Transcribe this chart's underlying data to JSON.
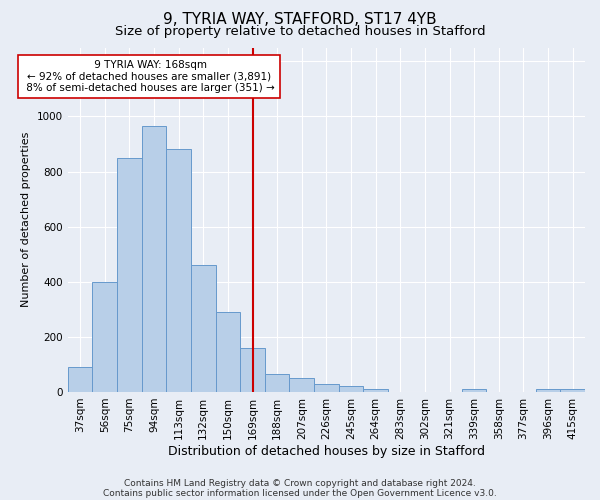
{
  "title1": "9, TYRIA WAY, STAFFORD, ST17 4YB",
  "title2": "Size of property relative to detached houses in Stafford",
  "xlabel": "Distribution of detached houses by size in Stafford",
  "ylabel": "Number of detached properties",
  "footer1": "Contains HM Land Registry data © Crown copyright and database right 2024.",
  "footer2": "Contains public sector information licensed under the Open Government Licence v3.0.",
  "bar_labels": [
    "37sqm",
    "56sqm",
    "75sqm",
    "94sqm",
    "113sqm",
    "132sqm",
    "150sqm",
    "169sqm",
    "188sqm",
    "207sqm",
    "226sqm",
    "245sqm",
    "264sqm",
    "283sqm",
    "302sqm",
    "321sqm",
    "339sqm",
    "358sqm",
    "377sqm",
    "396sqm",
    "415sqm"
  ],
  "bar_values": [
    90,
    400,
    850,
    965,
    880,
    460,
    290,
    160,
    65,
    50,
    30,
    20,
    10,
    0,
    0,
    0,
    10,
    0,
    0,
    10,
    10
  ],
  "bar_color": "#b8cfe8",
  "bar_edge_color": "#6699cc",
  "vline_x": 7,
  "vline_color": "#cc0000",
  "annotation_text": " 9 TYRIA WAY: 168sqm\n← 92% of detached houses are smaller (3,891)\n 8% of semi-detached houses are larger (351) →",
  "annotation_box_color": "#ffffff",
  "annotation_box_edge": "#cc0000",
  "ylim": [
    0,
    1250
  ],
  "yticks": [
    0,
    200,
    400,
    600,
    800,
    1000,
    1200
  ],
  "bg_color": "#e8edf5",
  "grid_color": "#ffffff",
  "title1_fontsize": 11,
  "title2_fontsize": 9.5,
  "xlabel_fontsize": 9,
  "ylabel_fontsize": 8,
  "tick_fontsize": 7.5,
  "annot_fontsize": 7.5,
  "footer_fontsize": 6.5
}
